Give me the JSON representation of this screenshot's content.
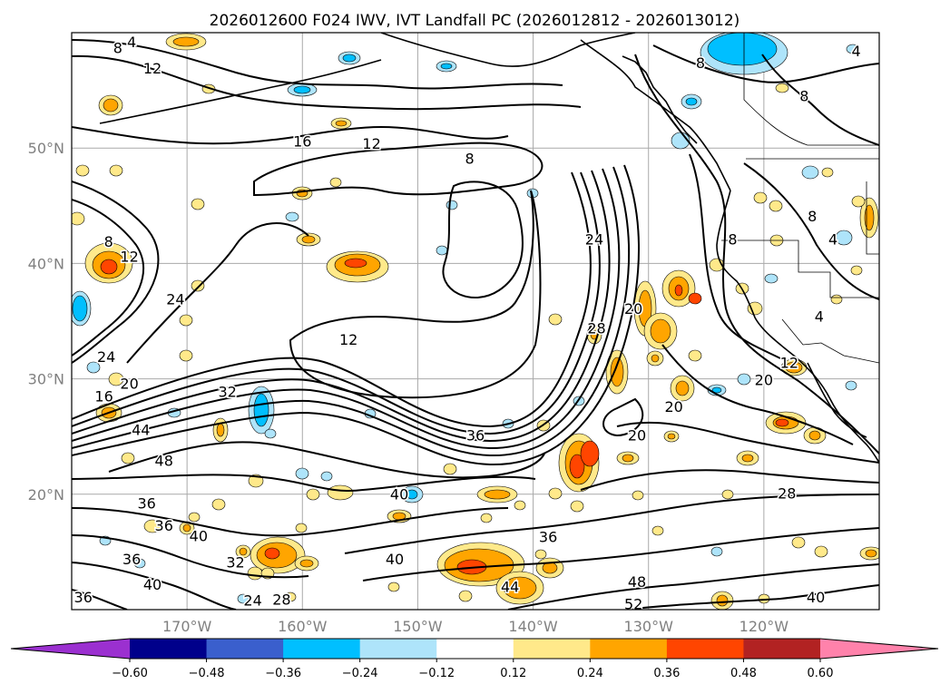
{
  "title": "2026012600 F024 IWV, IVT Landfall PC (2026012812 - 2026013012)",
  "map": {
    "lat_labels": [
      "50°N",
      "40°N",
      "30°N",
      "20°N"
    ],
    "lon_labels": [
      "170°W",
      "160°W",
      "150°W",
      "140°W",
      "130°W",
      "120°W"
    ],
    "lat_values": [
      50,
      40,
      30,
      20
    ],
    "lon_values": [
      -170,
      -160,
      -150,
      -140,
      -130,
      -120
    ],
    "lat_range": [
      10,
      60
    ],
    "lon_range": [
      -180,
      -110
    ],
    "grid": true
  },
  "colorbar": {
    "ticks": [
      "−0.60",
      "−0.48",
      "−0.36",
      "−0.24",
      "−0.12",
      "0.12",
      "0.24",
      "0.36",
      "0.48",
      "0.60"
    ],
    "colors": [
      "#9b30d0",
      "#00008b",
      "#3a5fcd",
      "#00bfff",
      "#aee4fa",
      "#ffffff",
      "#ffe98a",
      "#ffa500",
      "#ff4500",
      "#b22222",
      "#ff82ab"
    ],
    "extend": "both"
  },
  "contour_labels": [
    {
      "text": "4",
      "lon": -174.8,
      "lat": 59.1
    },
    {
      "text": "8",
      "lon": -176.0,
      "lat": 58.6
    },
    {
      "text": "12",
      "lon": -173.0,
      "lat": 56.8
    },
    {
      "text": "16",
      "lon": -160.0,
      "lat": 50.5
    },
    {
      "text": "12",
      "lon": -154.0,
      "lat": 50.3
    },
    {
      "text": "8",
      "lon": -145.5,
      "lat": 49.0
    },
    {
      "text": "8",
      "lon": -176.8,
      "lat": 41.8
    },
    {
      "text": "12",
      "lon": -175.0,
      "lat": 40.5
    },
    {
      "text": "24",
      "lon": -171.0,
      "lat": 36.8
    },
    {
      "text": "12",
      "lon": -156.0,
      "lat": 33.3
    },
    {
      "text": "24",
      "lon": -134.7,
      "lat": 42.0
    },
    {
      "text": "28",
      "lon": -134.5,
      "lat": 34.3
    },
    {
      "text": "20",
      "lon": -131.3,
      "lat": 36.0
    },
    {
      "text": "24",
      "lon": -177.0,
      "lat": 31.8
    },
    {
      "text": "20",
      "lon": -175.0,
      "lat": 29.5
    },
    {
      "text": "16",
      "lon": -177.2,
      "lat": 28.4
    },
    {
      "text": "32",
      "lon": -166.5,
      "lat": 28.8
    },
    {
      "text": "44",
      "lon": -174.0,
      "lat": 25.5
    },
    {
      "text": "48",
      "lon": -172.0,
      "lat": 22.8
    },
    {
      "text": "36",
      "lon": -145.0,
      "lat": 25.0
    },
    {
      "text": "20",
      "lon": -127.8,
      "lat": 27.5
    },
    {
      "text": "20",
      "lon": -131.0,
      "lat": 25.0
    },
    {
      "text": "20",
      "lon": -120.0,
      "lat": 29.8
    },
    {
      "text": "12",
      "lon": -117.8,
      "lat": 31.3
    },
    {
      "text": "28",
      "lon": -118.0,
      "lat": 20.0
    },
    {
      "text": "36",
      "lon": -173.5,
      "lat": 19.1
    },
    {
      "text": "40",
      "lon": -151.6,
      "lat": 19.9
    },
    {
      "text": "36",
      "lon": -172.0,
      "lat": 17.2
    },
    {
      "text": "40",
      "lon": -169.0,
      "lat": 16.3
    },
    {
      "text": "36",
      "lon": -174.8,
      "lat": 14.3
    },
    {
      "text": "32",
      "lon": -165.8,
      "lat": 14.0
    },
    {
      "text": "40",
      "lon": -152.0,
      "lat": 14.3
    },
    {
      "text": "36",
      "lon": -138.7,
      "lat": 16.2
    },
    {
      "text": "40",
      "lon": -173.0,
      "lat": 12.1
    },
    {
      "text": "36",
      "lon": -179.0,
      "lat": 11.0
    },
    {
      "text": "24",
      "lon": -164.3,
      "lat": 10.7
    },
    {
      "text": "28",
      "lon": -161.8,
      "lat": 10.8
    },
    {
      "text": "48",
      "lon": -131.0,
      "lat": 12.3
    },
    {
      "text": "44",
      "lon": -142.0,
      "lat": 11.9
    },
    {
      "text": "52",
      "lon": -131.3,
      "lat": 10.4
    },
    {
      "text": "40",
      "lon": -115.5,
      "lat": 11.0
    },
    {
      "text": "8",
      "lon": -116.5,
      "lat": 54.4
    },
    {
      "text": "4",
      "lon": -112.0,
      "lat": 58.3
    },
    {
      "text": "8",
      "lon": -115.8,
      "lat": 44.0
    },
    {
      "text": "8",
      "lon": -122.7,
      "lat": 42.0
    },
    {
      "text": "4",
      "lon": -115.2,
      "lat": 35.3
    },
    {
      "text": "4",
      "lon": -114.0,
      "lat": 42.0
    },
    {
      "text": "8",
      "lon": -125.5,
      "lat": 57.3
    }
  ]
}
